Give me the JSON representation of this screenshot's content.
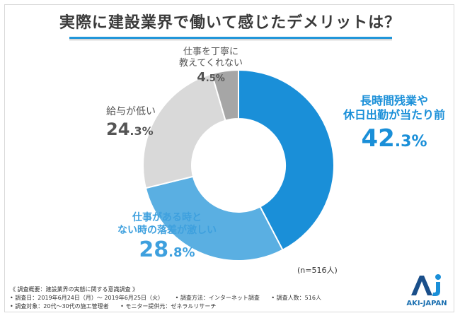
{
  "title": "実際に建設業界で働いて感じたデメリットは？",
  "chart_data": {
    "type": "pie",
    "title": "実際に建設業界で働いて感じたデメリットは？",
    "slices": [
      {
        "label_lines": [
          "長時間残業や",
          "休日出勤が当たり前"
        ],
        "value": 42.3,
        "value_int": "42",
        "value_dec": ".3%",
        "color": "#1a8fd8"
      },
      {
        "label_lines": [
          "仕事がある時と",
          "ない時の落差が激しい"
        ],
        "value": 28.8,
        "value_int": "28",
        "value_dec": ".8%",
        "color": "#5aafe2"
      },
      {
        "label_lines": [
          "給与が低い"
        ],
        "value": 24.3,
        "value_int": "24",
        "value_dec": ".3%",
        "color": "#d9d9d9"
      },
      {
        "label_lines": [
          "仕事を丁寧に",
          "教えてくれない"
        ],
        "value": 4.5,
        "value_int": "4",
        "value_dec": ".5%",
        "color": "#a6a6a6"
      }
    ],
    "sample": "(n=516人)"
  },
  "footer": {
    "heading": "《 調査概要：建設業界の実態に関する意識調査 》",
    "period": "• 調査日：2019年6月24日（月）～ 2019年6月25日（火）",
    "method": "• 調査方法：インターネット調査",
    "count": "• 調査人数：516人",
    "target": "• 調査対象：20代～30代の施工管理者",
    "provider": "• モニター提供元：ゼネラルリサーチ"
  },
  "logo": {
    "text": "AKI-JAPAN",
    "mark_color": "#1a8fd8",
    "mark_dark": "#1a4f8a"
  }
}
